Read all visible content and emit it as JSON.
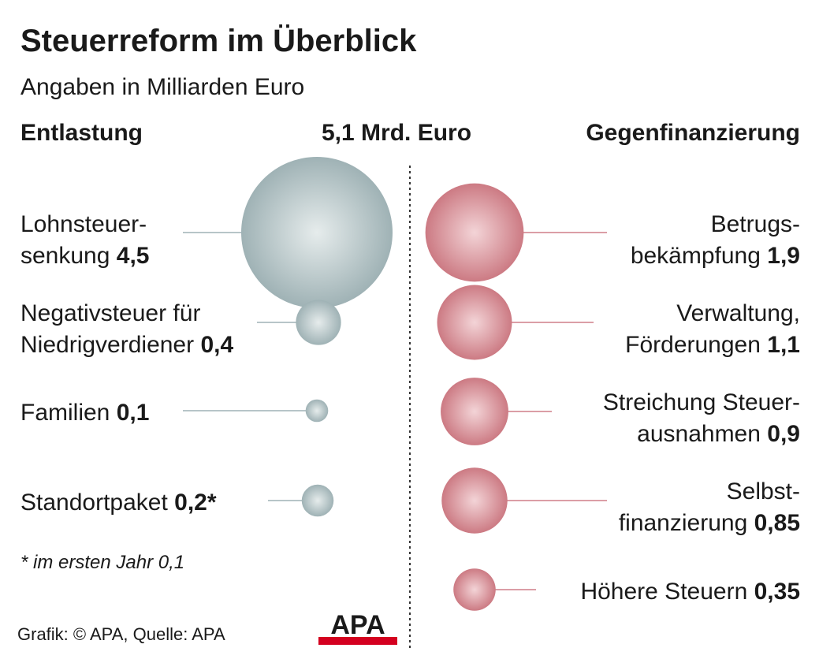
{
  "title": "Steuerreform im Überblick",
  "subtitle": "Angaben in Milliarden Euro",
  "headers": {
    "left": "Entlastung",
    "total": "5,1 Mrd. Euro",
    "right": "Gegenfinanzierung"
  },
  "footnote": "* im ersten Jahr 0,1",
  "source": "Grafik: © APA, Quelle: APA",
  "logo": "APA",
  "colors": {
    "entlastung": "#a9bcbf",
    "gegenfinanzierung": "#d48890",
    "logo_red": "#d4001f"
  },
  "chart_data": {
    "type": "bubble",
    "unit": "Mrd. Euro",
    "total": 5.1,
    "series": [
      {
        "name": "Entlastung",
        "items": [
          {
            "label_lines": [
              "Lohnsteuer-",
              "senkung"
            ],
            "value": 4.5,
            "value_text": "4,5"
          },
          {
            "label_lines": [
              "Negativsteuer für",
              "Niedrigverdiener"
            ],
            "value": 0.4,
            "value_text": "0,4"
          },
          {
            "label_lines": [
              "Familien"
            ],
            "value": 0.1,
            "value_text": "0,1"
          },
          {
            "label_lines": [
              "Standortpaket"
            ],
            "value": 0.2,
            "value_text": "0,2*"
          }
        ]
      },
      {
        "name": "Gegenfinanzierung",
        "items": [
          {
            "label_lines": [
              "Betrugs-",
              "bekämpfung"
            ],
            "value": 1.9,
            "value_text": "1,9"
          },
          {
            "label_lines": [
              "Verwaltung,",
              "Förderungen"
            ],
            "value": 1.1,
            "value_text": "1,1"
          },
          {
            "label_lines": [
              "Streichung Steuer-",
              "ausnahmen"
            ],
            "value": 0.9,
            "value_text": "0,9"
          },
          {
            "label_lines": [
              "Selbst-",
              "finanzierung"
            ],
            "value": 0.85,
            "value_text": "0,85"
          },
          {
            "label_lines": [
              "Höhere Steuern"
            ],
            "value": 0.35,
            "value_text": "0,35"
          }
        ]
      }
    ]
  }
}
